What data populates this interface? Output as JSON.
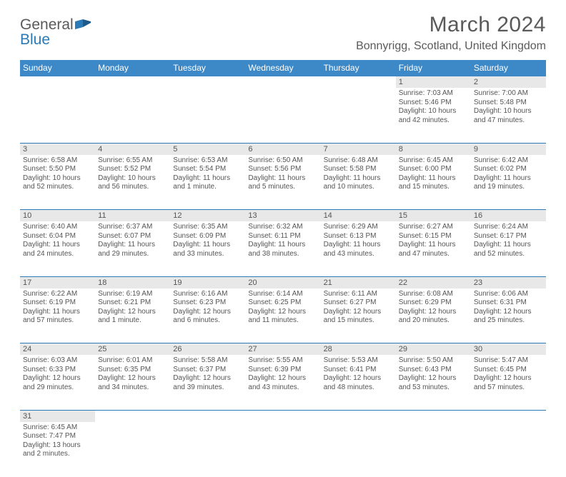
{
  "brand": {
    "name_part1": "General",
    "name_part2": "Blue"
  },
  "title": "March 2024",
  "location": "Bonnyrigg, Scotland, United Kingdom",
  "colors": {
    "header_bg": "#3d88c7",
    "border": "#2a7ab8",
    "daynum_bg": "#e8e8e8",
    "text": "#555555"
  },
  "day_headers": [
    "Sunday",
    "Monday",
    "Tuesday",
    "Wednesday",
    "Thursday",
    "Friday",
    "Saturday"
  ],
  "weeks": [
    [
      null,
      null,
      null,
      null,
      null,
      {
        "n": "1",
        "sr": "7:03 AM",
        "ss": "5:46 PM",
        "dl": "10 hours and 42 minutes."
      },
      {
        "n": "2",
        "sr": "7:00 AM",
        "ss": "5:48 PM",
        "dl": "10 hours and 47 minutes."
      }
    ],
    [
      {
        "n": "3",
        "sr": "6:58 AM",
        "ss": "5:50 PM",
        "dl": "10 hours and 52 minutes."
      },
      {
        "n": "4",
        "sr": "6:55 AM",
        "ss": "5:52 PM",
        "dl": "10 hours and 56 minutes."
      },
      {
        "n": "5",
        "sr": "6:53 AM",
        "ss": "5:54 PM",
        "dl": "11 hours and 1 minute."
      },
      {
        "n": "6",
        "sr": "6:50 AM",
        "ss": "5:56 PM",
        "dl": "11 hours and 5 minutes."
      },
      {
        "n": "7",
        "sr": "6:48 AM",
        "ss": "5:58 PM",
        "dl": "11 hours and 10 minutes."
      },
      {
        "n": "8",
        "sr": "6:45 AM",
        "ss": "6:00 PM",
        "dl": "11 hours and 15 minutes."
      },
      {
        "n": "9",
        "sr": "6:42 AM",
        "ss": "6:02 PM",
        "dl": "11 hours and 19 minutes."
      }
    ],
    [
      {
        "n": "10",
        "sr": "6:40 AM",
        "ss": "6:04 PM",
        "dl": "11 hours and 24 minutes."
      },
      {
        "n": "11",
        "sr": "6:37 AM",
        "ss": "6:07 PM",
        "dl": "11 hours and 29 minutes."
      },
      {
        "n": "12",
        "sr": "6:35 AM",
        "ss": "6:09 PM",
        "dl": "11 hours and 33 minutes."
      },
      {
        "n": "13",
        "sr": "6:32 AM",
        "ss": "6:11 PM",
        "dl": "11 hours and 38 minutes."
      },
      {
        "n": "14",
        "sr": "6:29 AM",
        "ss": "6:13 PM",
        "dl": "11 hours and 43 minutes."
      },
      {
        "n": "15",
        "sr": "6:27 AM",
        "ss": "6:15 PM",
        "dl": "11 hours and 47 minutes."
      },
      {
        "n": "16",
        "sr": "6:24 AM",
        "ss": "6:17 PM",
        "dl": "11 hours and 52 minutes."
      }
    ],
    [
      {
        "n": "17",
        "sr": "6:22 AM",
        "ss": "6:19 PM",
        "dl": "11 hours and 57 minutes."
      },
      {
        "n": "18",
        "sr": "6:19 AM",
        "ss": "6:21 PM",
        "dl": "12 hours and 1 minute."
      },
      {
        "n": "19",
        "sr": "6:16 AM",
        "ss": "6:23 PM",
        "dl": "12 hours and 6 minutes."
      },
      {
        "n": "20",
        "sr": "6:14 AM",
        "ss": "6:25 PM",
        "dl": "12 hours and 11 minutes."
      },
      {
        "n": "21",
        "sr": "6:11 AM",
        "ss": "6:27 PM",
        "dl": "12 hours and 15 minutes."
      },
      {
        "n": "22",
        "sr": "6:08 AM",
        "ss": "6:29 PM",
        "dl": "12 hours and 20 minutes."
      },
      {
        "n": "23",
        "sr": "6:06 AM",
        "ss": "6:31 PM",
        "dl": "12 hours and 25 minutes."
      }
    ],
    [
      {
        "n": "24",
        "sr": "6:03 AM",
        "ss": "6:33 PM",
        "dl": "12 hours and 29 minutes."
      },
      {
        "n": "25",
        "sr": "6:01 AM",
        "ss": "6:35 PM",
        "dl": "12 hours and 34 minutes."
      },
      {
        "n": "26",
        "sr": "5:58 AM",
        "ss": "6:37 PM",
        "dl": "12 hours and 39 minutes."
      },
      {
        "n": "27",
        "sr": "5:55 AM",
        "ss": "6:39 PM",
        "dl": "12 hours and 43 minutes."
      },
      {
        "n": "28",
        "sr": "5:53 AM",
        "ss": "6:41 PM",
        "dl": "12 hours and 48 minutes."
      },
      {
        "n": "29",
        "sr": "5:50 AM",
        "ss": "6:43 PM",
        "dl": "12 hours and 53 minutes."
      },
      {
        "n": "30",
        "sr": "5:47 AM",
        "ss": "6:45 PM",
        "dl": "12 hours and 57 minutes."
      }
    ],
    [
      {
        "n": "31",
        "sr": "6:45 AM",
        "ss": "7:47 PM",
        "dl": "13 hours and 2 minutes."
      },
      null,
      null,
      null,
      null,
      null,
      null
    ]
  ]
}
